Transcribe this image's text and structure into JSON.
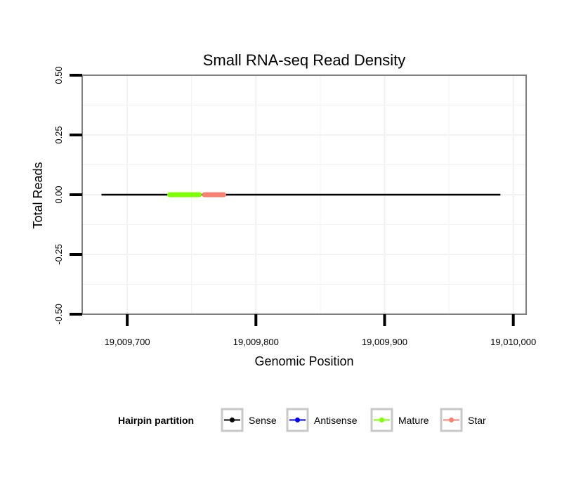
{
  "chart_data": {
    "type": "line",
    "title": "Small RNA-seq Read Density",
    "xlabel": "Genomic Position",
    "ylabel": "Total Reads",
    "xlim": [
      19009665,
      19010010
    ],
    "ylim": [
      -0.5,
      0.5
    ],
    "x_ticks": [
      19009700,
      19009800,
      19009900,
      19010000
    ],
    "x_tick_labels": [
      "19,009,700",
      "19,009,800",
      "19,009,900",
      "19,010,000"
    ],
    "y_ticks": [
      -0.5,
      -0.25,
      0,
      0.25,
      0.5
    ],
    "y_tick_labels": [
      "-0.50",
      "-0.25",
      "0.00",
      "0.25",
      "0.50"
    ],
    "grid": true,
    "series": [
      {
        "name": "Sense",
        "color": "#000000",
        "x": [
          19009680,
          19009990
        ],
        "y": [
          0,
          0
        ]
      },
      {
        "name": "Antisense",
        "color": "#0000ff",
        "x": [
          19009680,
          19009990
        ],
        "y": [
          0,
          0
        ]
      },
      {
        "name": "Mature",
        "color": "#7fff00",
        "x": [
          19009733,
          19009756
        ],
        "y": [
          0,
          0
        ]
      },
      {
        "name": "Star",
        "color": "#fa8072",
        "x": [
          19009760,
          19009775
        ],
        "y": [
          0,
          0
        ]
      }
    ],
    "legend": {
      "title": "Hairpin partition",
      "placement": "bottom",
      "entries": [
        "Sense",
        "Antisense",
        "Mature",
        "Star"
      ]
    }
  }
}
